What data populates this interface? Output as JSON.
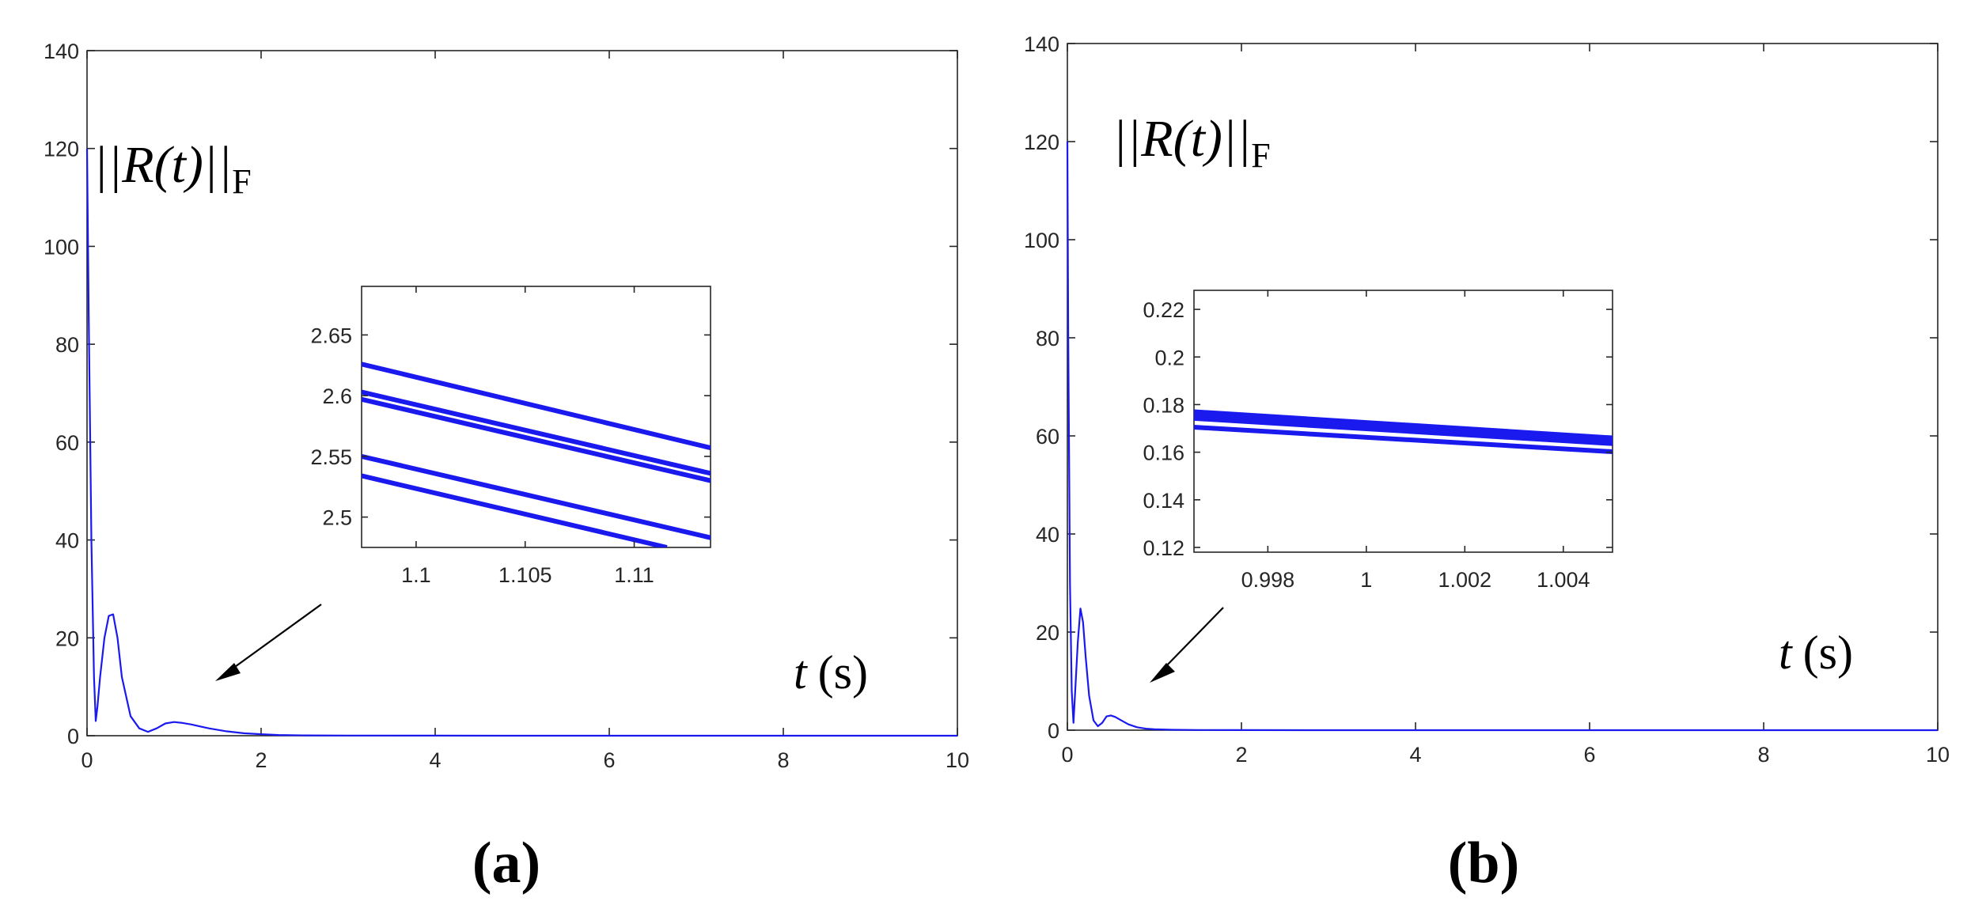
{
  "figure": {
    "colors": {
      "line": "#1a1aee",
      "axis": "#262626",
      "arrow": "#000000"
    },
    "panels": [
      {
        "id": "a",
        "caption": "(a)",
        "ylabel_main": "||R(t)||",
        "ylabel_sub": "F",
        "xlabel_var": "t",
        "xlabel_unit": "(s)"
      },
      {
        "id": "b",
        "caption": "(b)",
        "ylabel_main": "||R(t)||",
        "ylabel_sub": "F",
        "xlabel_var": "t",
        "xlabel_unit": "(s)"
      }
    ]
  },
  "chart_data": [
    {
      "type": "line",
      "title": "(a)",
      "xlabel": "t (s)",
      "ylabel": "||R(t)||F",
      "xlim": [
        0,
        10
      ],
      "ylim": [
        0,
        140
      ],
      "xticks": [
        0,
        2,
        4,
        6,
        8,
        10
      ],
      "yticks": [
        0,
        20,
        40,
        60,
        80,
        100,
        120,
        140
      ],
      "series": [
        {
          "name": "||R(t)||F",
          "x": [
            0,
            0.02,
            0.05,
            0.08,
            0.1,
            0.12,
            0.15,
            0.2,
            0.25,
            0.3,
            0.35,
            0.4,
            0.5,
            0.6,
            0.7,
            0.8,
            0.9,
            1.0,
            1.1,
            1.2,
            1.4,
            1.6,
            1.8,
            2.0,
            2.2,
            2.5,
            3,
            4,
            5,
            6,
            7,
            8,
            9,
            10
          ],
          "y": [
            120,
            85,
            40,
            12,
            3,
            6,
            12,
            20,
            24.5,
            24.8,
            20,
            12,
            4,
            1.5,
            0.8,
            1.5,
            2.5,
            2.8,
            2.6,
            2.3,
            1.5,
            0.9,
            0.5,
            0.3,
            0.15,
            0.07,
            0.03,
            0.01,
            0.005,
            0.002,
            0.001,
            0.001,
            0.001,
            0.001
          ]
        }
      ],
      "inset": {
        "xlim": [
          1.0975,
          1.1135
        ],
        "ylim": [
          2.475,
          2.69
        ],
        "xticks": [
          1.1,
          1.105,
          1.11
        ],
        "xtick_labels": [
          "1.1",
          "1.105",
          "1.11"
        ],
        "yticks": [
          2.5,
          2.55,
          2.6,
          2.65
        ],
        "ytick_labels": [
          "2.5",
          "2.55",
          "2.6",
          "2.65"
        ],
        "lines": [
          {
            "x": [
              1.0975,
              1.1135
            ],
            "y": [
              2.626,
              2.557
            ]
          },
          {
            "x": [
              1.0975,
              1.1135
            ],
            "y": [
              2.603,
              2.536
            ]
          },
          {
            "x": [
              1.0975,
              1.1135
            ],
            "y": [
              2.597,
              2.53
            ]
          },
          {
            "x": [
              1.0975,
              1.1135
            ],
            "y": [
              2.55,
              2.483
            ]
          },
          {
            "x": [
              1.0975,
              1.1115
            ],
            "y": [
              2.534,
              2.475
            ]
          }
        ]
      },
      "annotation": {
        "type": "arrow",
        "text": "",
        "points_to": "t ≈ 1.5"
      }
    },
    {
      "type": "line",
      "title": "(b)",
      "xlabel": "t (s)",
      "ylabel": "||R(t)||F",
      "xlim": [
        0,
        10
      ],
      "ylim": [
        0,
        140
      ],
      "xticks": [
        0,
        2,
        4,
        6,
        8,
        10
      ],
      "yticks": [
        0,
        20,
        40,
        60,
        80,
        100,
        120,
        140
      ],
      "series": [
        {
          "name": "||R(t)||F",
          "x": [
            0,
            0.01,
            0.03,
            0.05,
            0.07,
            0.09,
            0.12,
            0.15,
            0.18,
            0.21,
            0.25,
            0.3,
            0.35,
            0.4,
            0.45,
            0.5,
            0.55,
            0.6,
            0.7,
            0.8,
            0.9,
            1.0,
            1.2,
            1.5,
            2,
            3,
            4,
            5,
            6,
            7,
            8,
            9,
            10
          ],
          "y": [
            120,
            80,
            30,
            8,
            1.5,
            8,
            18,
            24.8,
            22,
            15,
            7,
            2,
            0.8,
            1.5,
            2.8,
            3.0,
            2.7,
            2.2,
            1.2,
            0.6,
            0.3,
            0.17,
            0.08,
            0.03,
            0.01,
            0.003,
            0.001,
            0.001,
            0.001,
            0.001,
            0.001,
            0.001,
            0.001
          ]
        }
      ],
      "inset": {
        "xlim": [
          0.9965,
          1.005
        ],
        "ylim": [
          0.118,
          0.228
        ],
        "xticks": [
          0.998,
          1.0,
          1.002,
          1.004
        ],
        "xtick_labels": [
          "0.998",
          "1",
          "1.002",
          "1.004"
        ],
        "yticks": [
          0.12,
          0.14,
          0.16,
          0.18,
          0.2,
          0.22
        ],
        "ytick_labels": [
          "0.12",
          "0.14",
          "0.16",
          "0.18",
          "0.2",
          "0.22"
        ],
        "lines": [
          {
            "x": [
              0.9965,
              1.005
            ],
            "y": [
              0.177,
              0.166
            ]
          },
          {
            "x": [
              0.9965,
              1.005
            ],
            "y": [
              0.1755,
              0.1648
            ]
          },
          {
            "x": [
              0.9965,
              1.005
            ],
            "y": [
              0.1742,
              0.1636
            ]
          },
          {
            "x": [
              0.9965,
              1.005
            ],
            "y": [
              0.1705,
              0.1602
            ]
          }
        ]
      },
      "annotation": {
        "type": "arrow",
        "text": "",
        "points_to": "t ≈ 1.0"
      }
    }
  ]
}
